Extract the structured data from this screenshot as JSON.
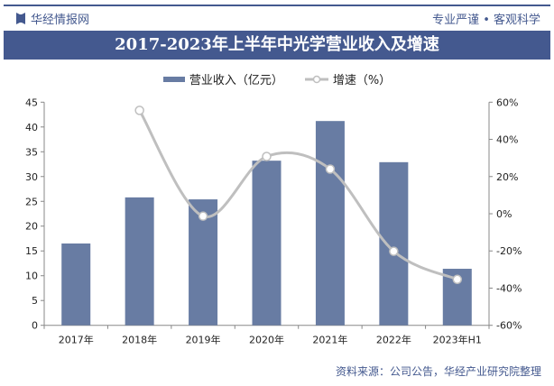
{
  "header": {
    "brand": "华经情报网",
    "slogan": "专业严谨 • 客观科学"
  },
  "source": "资料来源：公司公告，华经产业研究院整理",
  "chart_data": {
    "type": "bar+line",
    "title": "2017-2023年上半年中光学营业收入及增速",
    "categories": [
      "2017年",
      "2018年",
      "2019年",
      "2020年",
      "2021年",
      "2022年",
      "2023年H1"
    ],
    "series": [
      {
        "name": "营业收入（亿元）",
        "type": "bar",
        "axis": "left",
        "color": "#687ca3",
        "values": [
          16.5,
          25.8,
          25.4,
          33.2,
          41.2,
          32.9,
          11.4
        ]
      },
      {
        "name": "增速（%）",
        "type": "line",
        "axis": "right",
        "color": "#bfbfbf",
        "values": [
          null,
          55.6,
          -1.3,
          30.8,
          24.0,
          -20.2,
          -35.3
        ]
      }
    ],
    "ylim": [
      0,
      45
    ],
    "yticks": [
      "0",
      "5",
      "10",
      "15",
      "20",
      "25",
      "30",
      "35",
      "40",
      "45"
    ],
    "y2lim": [
      -60,
      60
    ],
    "y2ticks": [
      "-60%",
      "-40%",
      "-20%",
      "0%",
      "20%",
      "40%",
      "60%"
    ],
    "legend": "top",
    "grid": false
  }
}
